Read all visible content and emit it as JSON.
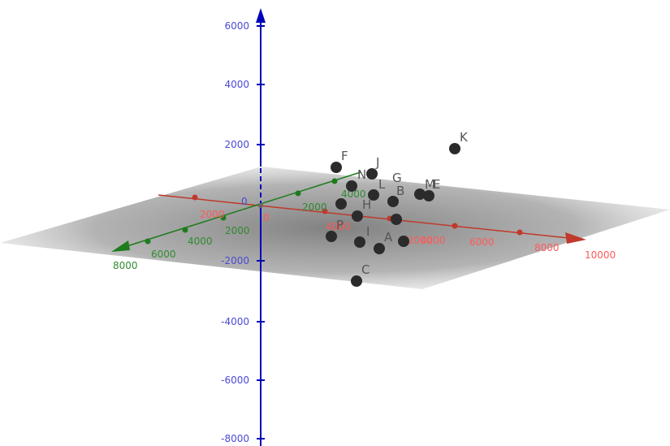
{
  "view": {
    "type": "3D graphing view",
    "colors": {
      "x_axis": "#c0392b",
      "y_axis": "#1e7b1e",
      "z_axis": "#0000b8",
      "z_labels": "#4a4ad6",
      "x_labels": "#ff5a5a",
      "y_labels": "#2f8a2f",
      "plane": "#8f8f8f",
      "points": "#2b2b2b",
      "point_labels": "#555555"
    }
  },
  "axes": {
    "z_ticks": [
      "6000",
      "4000",
      "2000",
      "0",
      "-2000",
      "-4000",
      "-6000",
      "-8000"
    ],
    "x_ticks": [
      "2000",
      "4000",
      "6000",
      "8000",
      "10000"
    ],
    "x_ticks_near": [
      "2000",
      "4000"
    ],
    "y_ticks": [
      "2000",
      "4000",
      "6000",
      "8000"
    ],
    "y_ticks_back": [
      "2000",
      "4000"
    ],
    "origin": "0"
  },
  "points": [
    {
      "label": "K"
    },
    {
      "label": "F"
    },
    {
      "label": "J"
    },
    {
      "label": "N"
    },
    {
      "label": "G"
    },
    {
      "label": "L"
    },
    {
      "label": "M"
    },
    {
      "label": "E"
    },
    {
      "label": "B"
    },
    {
      "label": "H"
    },
    {
      "label": "P"
    },
    {
      "label": "I"
    },
    {
      "label": "A"
    },
    {
      "label": "C"
    }
  ]
}
